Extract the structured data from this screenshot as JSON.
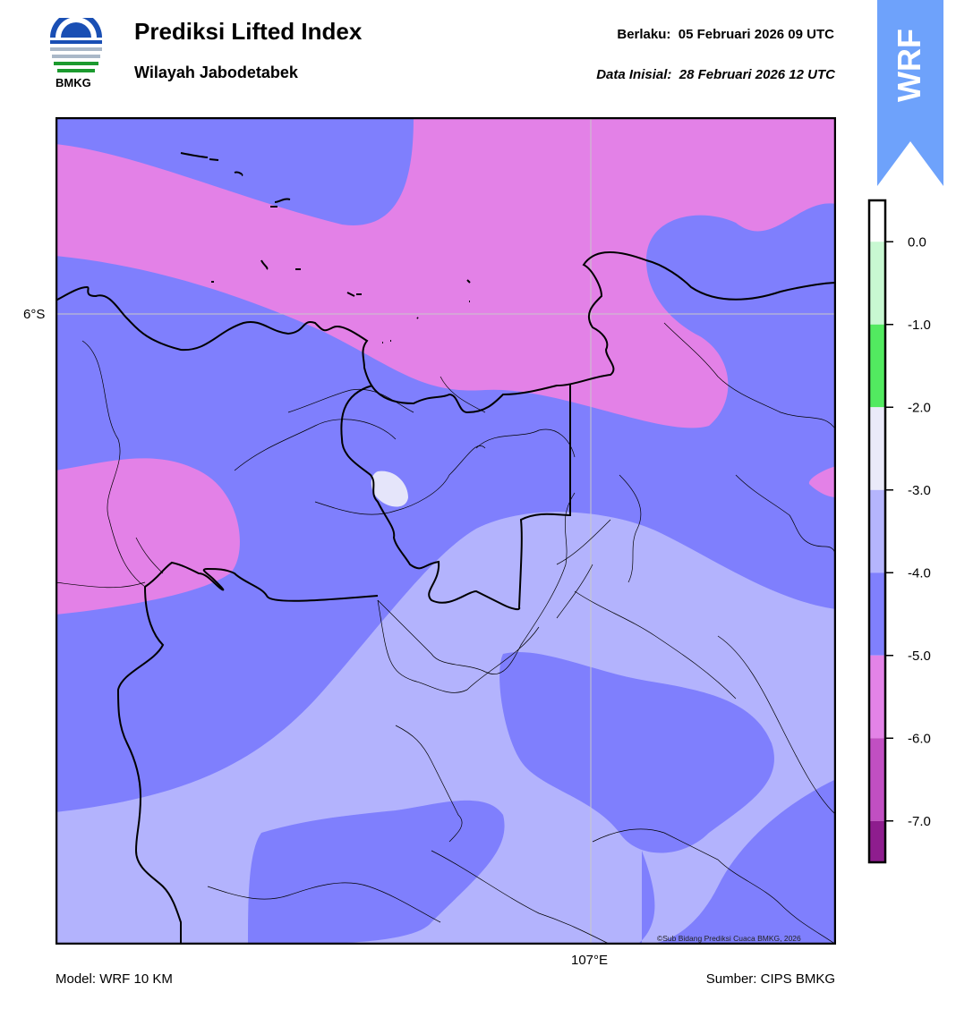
{
  "header": {
    "title": "Prediksi Lifted Index",
    "subtitle": "Wilayah Jabodetabek",
    "valid_label": "Berlaku:",
    "valid_value": "05 Februari 2026 09 UTC",
    "init_label": "Data Inisial:",
    "init_value": "28 Februari 2026 12 UTC"
  },
  "logo": {
    "icon": "bmkg-logo-icon",
    "text": "BMKG"
  },
  "badge": {
    "text": "WRF",
    "color": "#6ea2fb",
    "icon": "triangle-up-icon"
  },
  "map": {
    "lat_label": "6°S",
    "lon_label": "107°E",
    "copyright": "©Sub Bidang Prediksi Cuaca BMKG, 2026",
    "colors": {
      "band_-4_-5": "#7f7ffd",
      "band_-5_-6": "#e381e7",
      "band_-3_-4": "#b3b3fd",
      "band_-2_-3": "#e5e5fa",
      "border": "#000000"
    }
  },
  "colorbar": {
    "ticks": [
      "0.0",
      "-1.0",
      "-2.0",
      "-3.0",
      "-4.0",
      "-5.0",
      "-6.0",
      "-7.0"
    ],
    "bands": [
      {
        "from": 0.5,
        "to": 0.0,
        "color": "#ffffff"
      },
      {
        "from": 0.0,
        "to": -1.0,
        "color": "#c8f8d2"
      },
      {
        "from": -1.0,
        "to": -2.0,
        "color": "#52ea60"
      },
      {
        "from": -2.0,
        "to": -3.0,
        "color": "#eaeaf9"
      },
      {
        "from": -3.0,
        "to": -4.0,
        "color": "#b5b5fd"
      },
      {
        "from": -4.0,
        "to": -5.0,
        "color": "#8080fd"
      },
      {
        "from": -5.0,
        "to": -6.0,
        "color": "#e383e7"
      },
      {
        "from": -6.0,
        "to": -7.0,
        "color": "#c14fc2"
      },
      {
        "from": -7.0,
        "to": -7.5,
        "color": "#8e1d8e"
      }
    ]
  },
  "footer": {
    "model": "Model: WRF 10 KM",
    "source": "Sumber: CIPS BMKG"
  }
}
